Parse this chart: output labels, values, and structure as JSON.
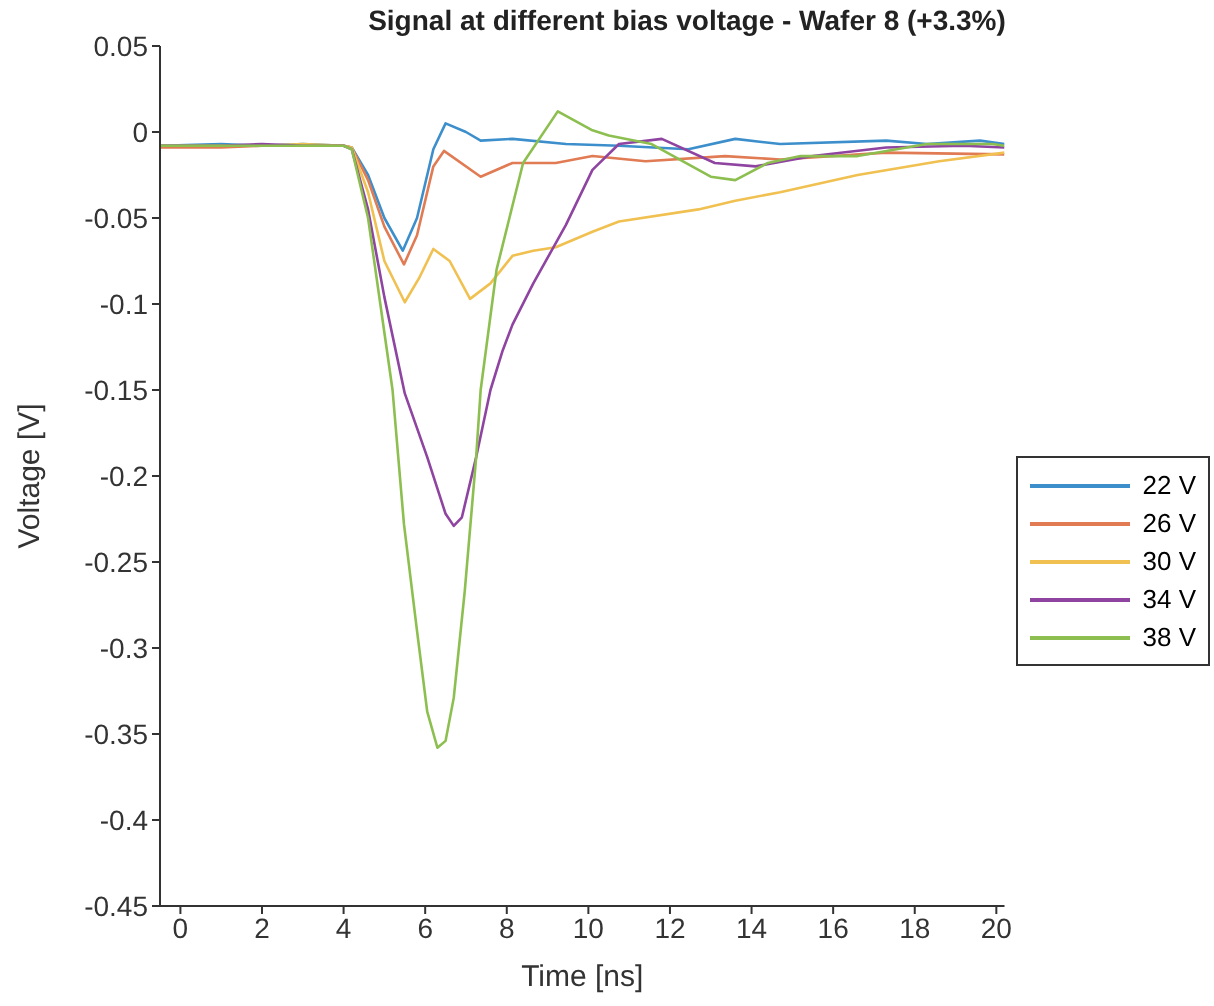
{
  "chart_data": {
    "type": "line",
    "title": "Signal at different bias voltage - Wafer 8 (+3.3%)",
    "xlabel": "Time [ns]",
    "ylabel": "Voltage [V]",
    "xlim": [
      -0.5,
      20.2
    ],
    "xticks": [
      0,
      2,
      4,
      6,
      8,
      10,
      12,
      14,
      16,
      18,
      20
    ],
    "ylim": [
      -0.45,
      0.05
    ],
    "yticks": [
      -0.45,
      -0.4,
      -0.35,
      -0.3,
      -0.25,
      -0.2,
      -0.15,
      -0.1,
      -0.05,
      0,
      0.05
    ],
    "grid": false,
    "legend": "right",
    "marker": "none",
    "line_style": "solid",
    "series": [
      {
        "name": "22 V",
        "color": "#3d8fcc",
        "x": [
          -0.5,
          1,
          2,
          3,
          4,
          4.2,
          4.6,
          5,
          5.45,
          5.8,
          6.2,
          6.5,
          7,
          7.36,
          8.14,
          9.45,
          10.75,
          12.45,
          13.6,
          14.7,
          17.3,
          18.3,
          19.6,
          20.2
        ],
        "values": [
          -0.008,
          -0.007,
          -0.008,
          -0.007,
          -0.008,
          -0.009,
          -0.025,
          -0.05,
          -0.069,
          -0.05,
          -0.01,
          0.005,
          0.0,
          -0.005,
          -0.004,
          -0.007,
          -0.008,
          -0.01,
          -0.004,
          -0.007,
          -0.005,
          -0.007,
          -0.005,
          -0.007
        ]
      },
      {
        "name": "26 V",
        "color": "#e07b53",
        "x": [
          -0.5,
          1,
          2,
          3,
          4,
          4.2,
          4.6,
          5,
          5.48,
          5.8,
          6.2,
          6.46,
          7.36,
          8.14,
          9.2,
          10.1,
          11.4,
          13.35,
          14.7,
          17.3,
          20.2
        ],
        "values": [
          -0.009,
          -0.009,
          -0.008,
          -0.008,
          -0.008,
          -0.009,
          -0.028,
          -0.055,
          -0.077,
          -0.06,
          -0.02,
          -0.011,
          -0.026,
          -0.018,
          -0.018,
          -0.014,
          -0.017,
          -0.014,
          -0.016,
          -0.012,
          -0.013
        ]
      },
      {
        "name": "30 V",
        "color": "#f0c050",
        "x": [
          -0.5,
          1,
          2,
          3,
          4,
          4.2,
          4.6,
          5,
          5.5,
          5.85,
          6.2,
          6.6,
          7.1,
          7.6,
          8.14,
          8.65,
          9.2,
          10.1,
          10.75,
          12.7,
          13.6,
          14.7,
          16.6,
          18.6,
          20.2
        ],
        "values": [
          -0.008,
          -0.008,
          -0.008,
          -0.007,
          -0.008,
          -0.009,
          -0.035,
          -0.075,
          -0.099,
          -0.085,
          -0.068,
          -0.075,
          -0.097,
          -0.088,
          -0.072,
          -0.069,
          -0.067,
          -0.058,
          -0.052,
          -0.045,
          -0.04,
          -0.035,
          -0.025,
          -0.017,
          -0.012
        ]
      },
      {
        "name": "34 V",
        "color": "#8e44a0",
        "x": [
          -0.5,
          1,
          2,
          3,
          4,
          4.2,
          4.6,
          5,
          5.5,
          6.05,
          6.5,
          6.7,
          6.9,
          7.25,
          7.6,
          7.9,
          8.14,
          8.65,
          9.45,
          10.1,
          10.75,
          11.8,
          13.1,
          14.1,
          15.5,
          17.3,
          19.2,
          20.2
        ],
        "values": [
          -0.008,
          -0.008,
          -0.007,
          -0.008,
          -0.008,
          -0.01,
          -0.045,
          -0.096,
          -0.152,
          -0.189,
          -0.222,
          -0.229,
          -0.224,
          -0.189,
          -0.15,
          -0.127,
          -0.112,
          -0.088,
          -0.054,
          -0.022,
          -0.007,
          -0.004,
          -0.018,
          -0.02,
          -0.014,
          -0.009,
          -0.008,
          -0.009
        ]
      },
      {
        "name": "38 V",
        "color": "#8cbf4f",
        "x": [
          -0.5,
          1,
          2,
          3,
          4,
          4.2,
          4.6,
          4.9,
          5.2,
          5.48,
          5.8,
          6.05,
          6.3,
          6.5,
          6.7,
          6.97,
          7.25,
          7.36,
          7.75,
          8.4,
          9.25,
          10.1,
          10.5,
          11.55,
          13,
          13.6,
          14.4,
          15.2,
          16.6,
          18.3,
          19.9,
          20.2
        ],
        "values": [
          -0.008,
          -0.008,
          -0.008,
          -0.008,
          -0.008,
          -0.01,
          -0.05,
          -0.1,
          -0.15,
          -0.228,
          -0.29,
          -0.337,
          -0.358,
          -0.354,
          -0.329,
          -0.267,
          -0.189,
          -0.15,
          -0.08,
          -0.018,
          0.012,
          0.001,
          -0.002,
          -0.007,
          -0.026,
          -0.028,
          -0.018,
          -0.014,
          -0.014,
          -0.007,
          -0.007,
          -0.008
        ]
      }
    ]
  }
}
